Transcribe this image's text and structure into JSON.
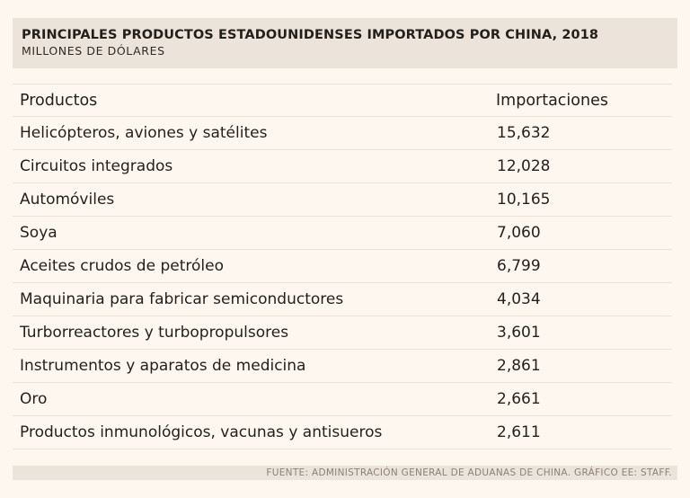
{
  "header": {
    "title": "PRINCIPALES PRODUCTOS ESTADOUNIDENSES IMPORTADOS POR CHINA, 2018",
    "subtitle": "MILLONES DE DÓLARES"
  },
  "footer": {
    "source": "FUENTE: ADMINISTRACIÓN GENERAL DE ADUANAS DE CHINA. GRÁFICO EE: STAFF."
  },
  "chart_data": {
    "type": "table",
    "title": "PRINCIPALES PRODUCTOS ESTADOUNIDENSES IMPORTADOS POR CHINA, 2018",
    "subtitle": "MILLONES DE DÓLARES",
    "columns": [
      "Productos",
      "Importaciones"
    ],
    "rows": [
      {
        "product": "Helicópteros, aviones y satélites",
        "value": "15,632"
      },
      {
        "product": "Circuitos integrados",
        "value": "12,028"
      },
      {
        "product": "Automóviles",
        "value": "10,165"
      },
      {
        "product": "Soya",
        "value": "7,060"
      },
      {
        "product": "Aceites crudos de petróleo",
        "value": "6,799"
      },
      {
        "product": "Maquinaria para fabricar semiconductores",
        "value": "4,034"
      },
      {
        "product": "Turborreactores y turbopropulsores",
        "value": "3,601"
      },
      {
        "product": "Instrumentos y aparatos de medicina",
        "value": "2,861"
      },
      {
        "product": "Oro",
        "value": "2,661"
      },
      {
        "product": "Productos inmunológicos, vacunas y antisueros",
        "value": "2,611"
      }
    ]
  }
}
